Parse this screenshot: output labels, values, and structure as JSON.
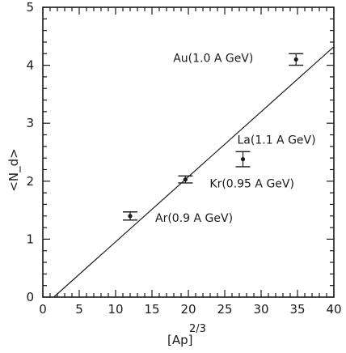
{
  "chart_data": {
    "type": "scatter",
    "title": "",
    "xlabel": "[Ap]",
    "xlabel_superscript": "2/3",
    "ylabel": "<N_d>",
    "xlim": [
      0,
      40
    ],
    "ylim": [
      0,
      5
    ],
    "xticks": [
      "0",
      "5",
      "10",
      "15",
      "20",
      "25",
      "30",
      "35",
      "40"
    ],
    "yticks": [
      "0",
      "1",
      "2",
      "3",
      "4",
      "5"
    ],
    "points": [
      {
        "label": "Ar(0.9 A GeV)",
        "x": 12.0,
        "y": 1.4,
        "err": 0.07
      },
      {
        "label": "Kr(0.95 A GeV)",
        "x": 19.6,
        "y": 2.03,
        "err": 0.06
      },
      {
        "label": "La(1.1 A GeV)",
        "x": 27.5,
        "y": 2.38,
        "err": 0.13
      },
      {
        "label": "Au(1.0 A GeV)",
        "x": 34.8,
        "y": 4.1,
        "err": 0.1
      }
    ],
    "fit_line": {
      "x": [
        1.5,
        40
      ],
      "y": [
        0,
        4.32
      ]
    },
    "grid": false,
    "colors": {
      "ink": "#1a1a1a",
      "background": "#ffffff"
    }
  }
}
